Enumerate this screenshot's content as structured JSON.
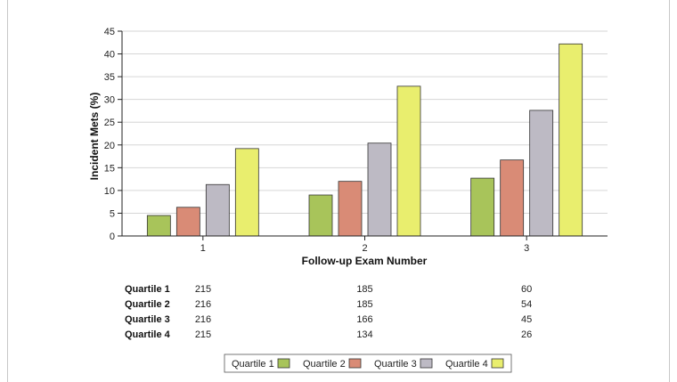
{
  "chart_data": {
    "type": "bar",
    "title": "",
    "xlabel": "Follow-up Exam Number",
    "ylabel": "Incident Mets (%)",
    "categories": [
      "1",
      "2",
      "3"
    ],
    "ylim": [
      0,
      45
    ],
    "yticks": [
      0,
      5,
      10,
      15,
      20,
      25,
      30,
      35,
      40,
      45
    ],
    "grid": true,
    "legend_position": "bottom",
    "series": [
      {
        "name": "Quartile 1",
        "color": "#a8c45a",
        "values": [
          4.5,
          9.0,
          12.7
        ]
      },
      {
        "name": "Quartile 2",
        "color": "#d98b76",
        "values": [
          6.3,
          12.0,
          16.7
        ]
      },
      {
        "name": "Quartile 3",
        "color": "#bdbac4",
        "values": [
          11.3,
          20.4,
          27.6
        ]
      },
      {
        "name": "Quartile 4",
        "color": "#e9ee6e",
        "values": [
          19.2,
          32.9,
          42.2
        ]
      }
    ],
    "numbers_table": {
      "rows": [
        {
          "label": "Quartile 1",
          "values": [
            "215",
            "185",
            "60"
          ]
        },
        {
          "label": "Quartile 2",
          "values": [
            "216",
            "185",
            "54"
          ]
        },
        {
          "label": "Quartile 3",
          "values": [
            "216",
            "166",
            "45"
          ]
        },
        {
          "label": "Quartile 4",
          "values": [
            "215",
            "134",
            "26"
          ]
        }
      ]
    }
  }
}
